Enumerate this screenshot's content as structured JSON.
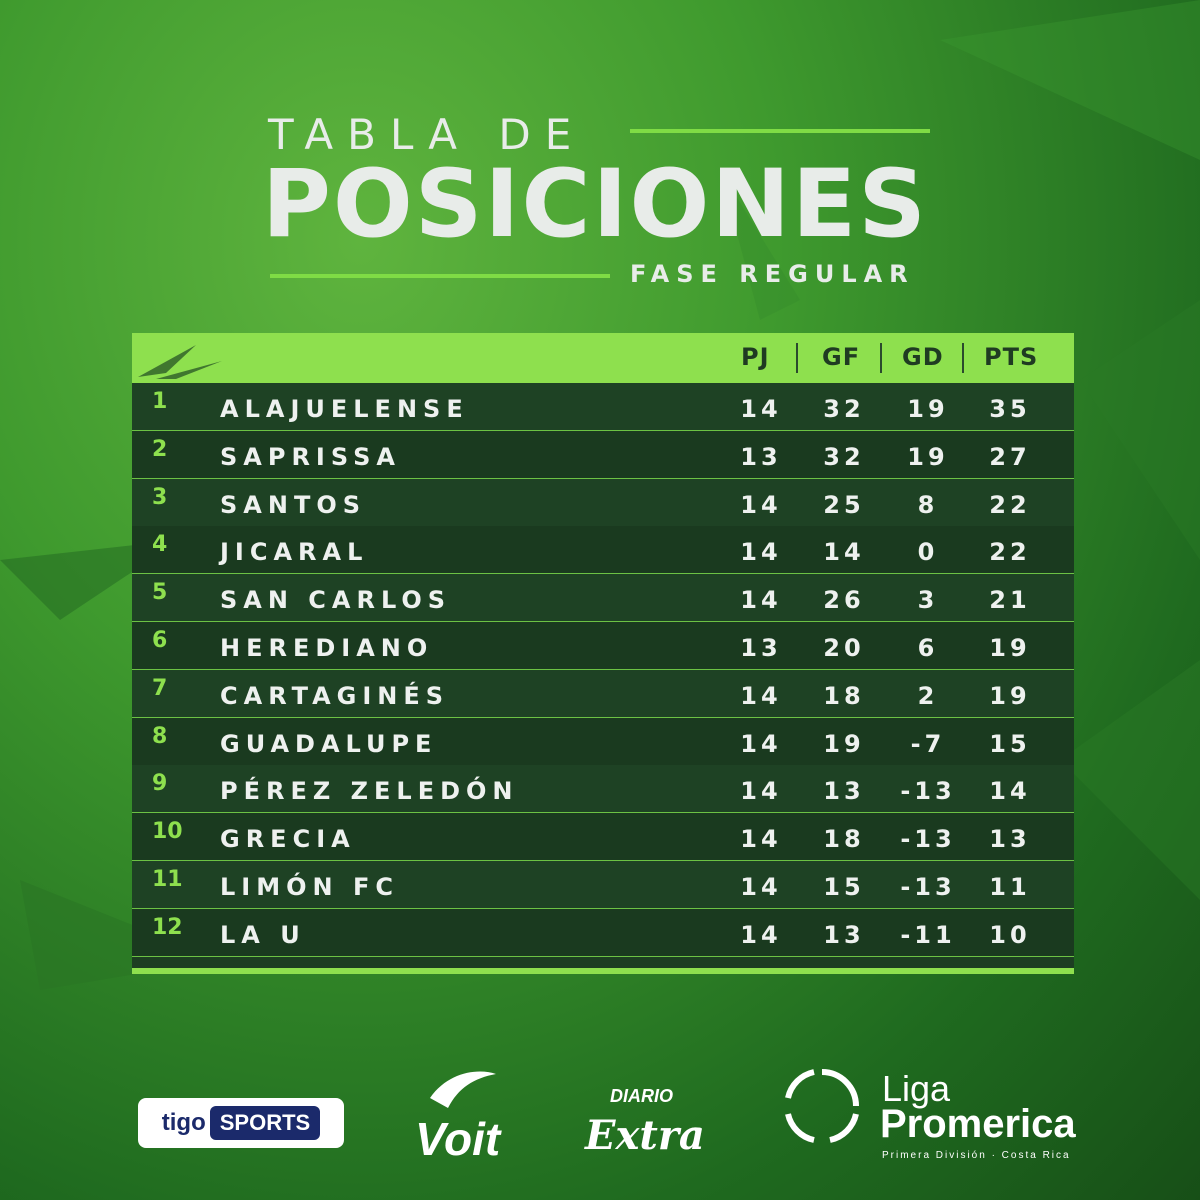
{
  "header": {
    "title_small": "TABLA DE",
    "title_big": "POSICIONES",
    "subtitle": "FASE REGULAR"
  },
  "table": {
    "columns": [
      "PJ",
      "GF",
      "GD",
      "PTS"
    ],
    "rows": [
      {
        "pos": "1",
        "team": "ALAJUELENSE",
        "pj": "14",
        "gf": "32",
        "gd": "19",
        "pts": "35"
      },
      {
        "pos": "2",
        "team": "SAPRISSA",
        "pj": "13",
        "gf": "32",
        "gd": "19",
        "pts": "27"
      },
      {
        "pos": "3",
        "team": "SANTOS",
        "pj": "14",
        "gf": "25",
        "gd": "8",
        "pts": "22"
      },
      {
        "pos": "4",
        "team": "JICARAL",
        "pj": "14",
        "gf": "14",
        "gd": "0",
        "pts": "22"
      },
      {
        "pos": "5",
        "team": "SAN CARLOS",
        "pj": "14",
        "gf": "26",
        "gd": "3",
        "pts": "21"
      },
      {
        "pos": "6",
        "team": "HEREDIANO",
        "pj": "13",
        "gf": "20",
        "gd": "6",
        "pts": "19"
      },
      {
        "pos": "7",
        "team": "CARTAGINÉS",
        "pj": "14",
        "gf": "18",
        "gd": "2",
        "pts": "19"
      },
      {
        "pos": "8",
        "team": "GUADALUPE",
        "pj": "14",
        "gf": "19",
        "gd": "-7",
        "pts": "15"
      },
      {
        "pos": "9",
        "team": "PÉREZ ZELEDÓN",
        "pj": "14",
        "gf": "13",
        "gd": "-13",
        "pts": "14"
      },
      {
        "pos": "10",
        "team": "GRECIA",
        "pj": "14",
        "gf": "18",
        "gd": "-13",
        "pts": "13"
      },
      {
        "pos": "11",
        "team": "LIMÓN FC",
        "pj": "14",
        "gf": "15",
        "gd": "-13",
        "pts": "11"
      },
      {
        "pos": "12",
        "team": "LA U",
        "pj": "14",
        "gf": "13",
        "gd": "-11",
        "pts": "10"
      }
    ]
  },
  "sponsors": {
    "tigo_a": "tigo",
    "tigo_b": "SPORTS",
    "voit": "Voit",
    "diario": "DIARIO",
    "extra": "Extra",
    "liga_top": "Liga",
    "liga_main": "Promerica",
    "liga_sub": "Primera División · Costa Rica"
  },
  "colors": {
    "accent": "#8ee04e",
    "row_dark": "#1a3a1f",
    "background": "#3f9a2e"
  }
}
